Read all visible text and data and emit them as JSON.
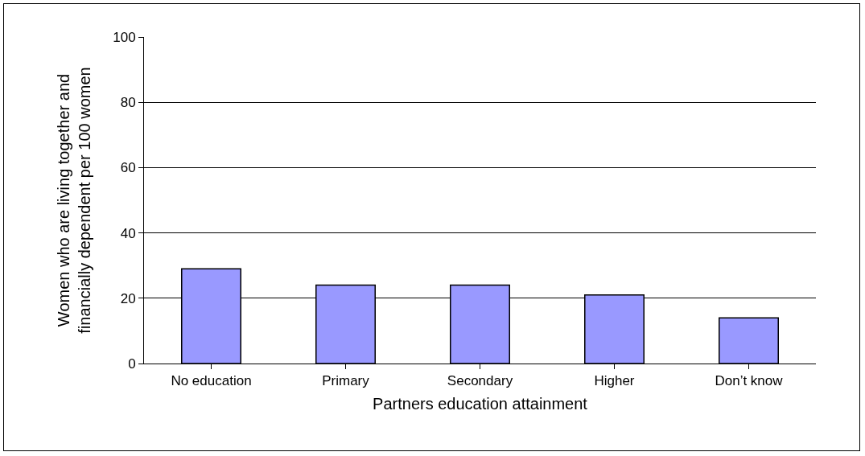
{
  "chart_data": {
    "type": "bar",
    "xlabel": "Partners education attainment",
    "ylabel": "Women who are living together and\nfinancially dependent per 100 women",
    "categories": [
      "No education",
      "Primary",
      "Secondary",
      "Higher",
      "Don’t know"
    ],
    "values": [
      29,
      24,
      24,
      21,
      14
    ],
    "color": "#9999ff",
    "ylim": [
      0,
      100
    ],
    "yticks": [
      0,
      20,
      40,
      60,
      80,
      100
    ],
    "grid": "y"
  }
}
